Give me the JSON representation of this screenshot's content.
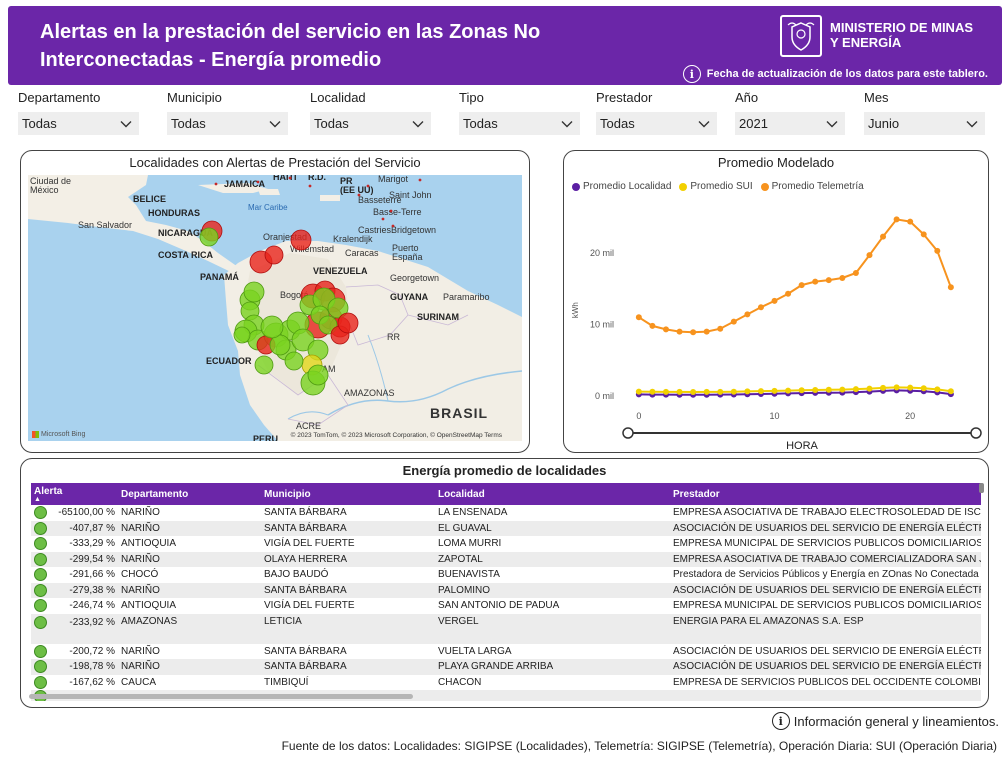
{
  "header": {
    "title": "Alertas en la prestación del servicio en las Zonas No Interconectadas - Energía promedio",
    "ministry": "MINISTERIO DE MINAS\nY ENERGÍA",
    "update_note": "Fecha de actualización de los datos para este tablero."
  },
  "filters": [
    {
      "label": "Departamento",
      "value": "Todas"
    },
    {
      "label": "Municipio",
      "value": "Todas"
    },
    {
      "label": "Localidad",
      "value": "Todas"
    },
    {
      "label": "Tipo",
      "value": "Todas"
    },
    {
      "label": "Prestador",
      "value": "Todas"
    },
    {
      "label": "Año",
      "value": "2021"
    },
    {
      "label": "Mes",
      "value": "Junio"
    }
  ],
  "map": {
    "title": "Localidades con Alertas de Prestación del Servicio",
    "labels": {
      "mexico": "Ciudad de\nMéxico",
      "belice": "BELICE",
      "honduras": "HONDURAS",
      "jamaica": "JAMAICA",
      "haiti": "HAITÍ",
      "rd": "R.D.",
      "pr": "PR\n(EE UU)",
      "marigot": "Marigot",
      "basseterre": "Basseterre",
      "saintjohn": "Saint John",
      "bassterre": "Basse-Terre",
      "marcaribe": "Mar Caribe",
      "salvador": "San Salvador",
      "nicaragua": "NICARAGUA",
      "oranjestad": "Oranjestad",
      "kralendijk": "Kralendijk",
      "castries": "Castries",
      "bridgetown": "Bridgetown",
      "willemstad": "Willemstad",
      "puertoespana": "Puerto\nEspaña",
      "costarica": "COSTA RICA",
      "caracas": "Caracas",
      "venezuela": "VENEZUELA",
      "panama": "PANAMÁ",
      "georgetown": "Georgetown",
      "bogota": "Bogotá",
      "guyana": "GUYANA",
      "paramaribo": "Paramaribo",
      "surinam": "SURINAM",
      "rr": "RR",
      "ecuador": "ECUADOR",
      "am": "AM",
      "amazonas": "AMAZONAS",
      "brasil": "BRASIL",
      "acre": "ACRE",
      "peru": "PERU"
    },
    "credit": "© 2023 TomTom, © 2023 Microsoft Corporation, © OpenStreetMap  Terms",
    "bing": "Microsoft Bing",
    "colors": {
      "red": "#e8241c",
      "green": "#7bd321",
      "yellow": "#e4d81c"
    }
  },
  "line_chart_title": "Promedio Modelado",
  "chart_data": {
    "type": "line",
    "title": "Promedio Modelado",
    "xlabel": "HORA",
    "ylabel": "kWh",
    "x": [
      0,
      1,
      2,
      3,
      4,
      5,
      6,
      7,
      8,
      9,
      10,
      11,
      12,
      13,
      14,
      15,
      16,
      17,
      18,
      19,
      20,
      21,
      22,
      23
    ],
    "xticks": [
      0,
      10,
      20
    ],
    "ytick_labels": [
      "0 mil",
      "10 mil",
      "20 mil"
    ],
    "ylim": [
      -1000,
      27000
    ],
    "xlim": [
      -0.8,
      25
    ],
    "series": [
      {
        "name": "Promedio Localidad",
        "color": "#5b1fa3",
        "values": [
          200,
          180,
          170,
          160,
          150,
          160,
          170,
          190,
          220,
          260,
          300,
          340,
          380,
          420,
          440,
          460,
          520,
          600,
          700,
          760,
          720,
          640,
          480,
          250
        ]
      },
      {
        "name": "Promedio SUI",
        "color": "#f2d000",
        "values": [
          600,
          580,
          560,
          550,
          540,
          550,
          560,
          580,
          620,
          660,
          700,
          740,
          780,
          820,
          850,
          880,
          940,
          1020,
          1120,
          1180,
          1150,
          1060,
          900,
          650
        ]
      },
      {
        "name": "Promedio Telemetría",
        "color": "#f7931e",
        "values": [
          11000,
          9800,
          9300,
          9000,
          8900,
          9000,
          9400,
          10400,
          11400,
          12400,
          13300,
          14300,
          15500,
          16000,
          16200,
          16500,
          17200,
          19700,
          22300,
          24700,
          24400,
          22600,
          20300,
          15200
        ]
      }
    ],
    "legend": "top-left",
    "grid": false
  },
  "table": {
    "title": "Energía promedio de localidades",
    "columns": [
      "Alerta",
      "Departamento",
      "Municipio",
      "Localidad",
      "Prestador"
    ],
    "rows": [
      [
        "-65100,00 %",
        "NARIÑO",
        "SANTA BÁRBARA",
        "LA ENSENADA",
        "EMPRESA ASOCIATIVA DE TRABAJO ELECTROSOLEDAD DE ISCUAN"
      ],
      [
        "-407,87 %",
        "NARIÑO",
        "SANTA BÁRBARA",
        "EL GUAVAL",
        "ASOCIACIÓN DE USUARIOS DEL SERVICIO DE ENERGÍA ELÉCTRICA"
      ],
      [
        "-333,29 %",
        "ANTIOQUIA",
        "VIGÍA DEL FUERTE",
        "LOMA MURRI",
        "EMPRESA MUNICIPAL DE SERVICIOS PUBLICOS DOMICILIARIOS DE"
      ],
      [
        "-299,54 %",
        "NARIÑO",
        "OLAYA HERRERA",
        "ZAPOTAL",
        "EMPRESA ASOCIATIVA DE TRABAJO COMERCIALIZADORA SAN JOS"
      ],
      [
        "-291,66 %",
        "CHOCÓ",
        "BAJO BAUDÓ",
        "BUENAVISTA",
        "Prestadora de Servicios Públicos y Energía en ZOnas No Conectada"
      ],
      [
        "-279,38 %",
        "NARIÑO",
        "SANTA BÁRBARA",
        "PALOMINO",
        "ASOCIACIÓN DE USUARIOS DEL SERVICIO DE ENERGÍA ELÉCTRICA"
      ],
      [
        "-246,74 %",
        "ANTIOQUIA",
        "VIGÍA DEL FUERTE",
        "SAN ANTONIO DE PADUA",
        "EMPRESA MUNICIPAL DE SERVICIOS PUBLICOS DOMICILIARIOS DE"
      ],
      [
        "-233,92 %",
        "AMAZONAS",
        "LETICIA",
        "VERGEL",
        "ENERGIA PARA EL AMAZONAS S.A. ESP"
      ],
      [
        "-200,72 %",
        "NARIÑO",
        "SANTA BÁRBARA",
        "VUELTA LARGA",
        "ASOCIACIÓN DE USUARIOS DEL SERVICIO DE ENERGÍA ELÉCTRICA"
      ],
      [
        "-198,78 %",
        "NARIÑO",
        "SANTA BÁRBARA",
        "PLAYA GRANDE ARRIBA",
        "ASOCIACIÓN DE USUARIOS DEL SERVICIO DE ENERGÍA ELÉCTRICA"
      ],
      [
        "-167,62 %",
        "CAUCA",
        "TIMBIQUÍ",
        "CHACON",
        "EMPRESA DE SERVICIOS PUBLICOS DEL OCCIDENTE COLOMBIANC"
      ]
    ],
    "alert_color": "#6dbe45",
    "header_color": "#6b26a8"
  },
  "footer": {
    "info": "Información general y lineamientos.",
    "source": "Fuente de los datos: Localidades: SIGIPSE (Localidades), Telemetría: SIGIPSE (Telemetría), Operación Diaria: SUI (Operación Diaria)"
  }
}
